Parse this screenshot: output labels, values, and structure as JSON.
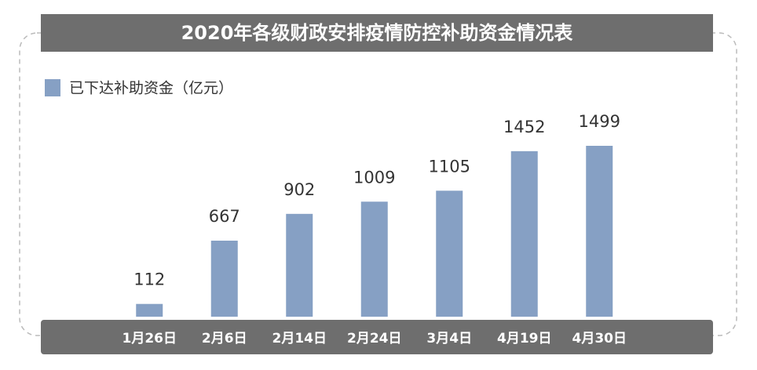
{
  "chart_data": {
    "type": "bar",
    "title": "2020年各级财政安排疫情防控补助资金情况表",
    "categories": [
      "1月26日",
      "2月6日",
      "2月14日",
      "2月24日",
      "3月4日",
      "4月19日",
      "4月30日"
    ],
    "series": [
      {
        "name": "已下达补助资金（亿元）",
        "color": "#86a0c4",
        "values": [
          112,
          667,
          902,
          1009,
          1105,
          1452,
          1499
        ]
      }
    ]
  }
}
